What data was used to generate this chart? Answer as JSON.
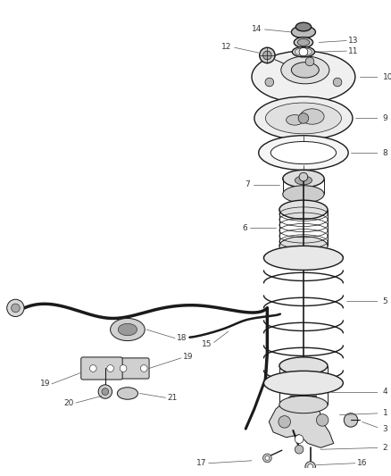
{
  "bg_color": "#ffffff",
  "line_color": "#1a1a1a",
  "label_color": "#333333",
  "fig_width": 4.38,
  "fig_height": 5.33,
  "dpi": 100,
  "xlim": [
    0,
    438
  ],
  "ylim": [
    0,
    533
  ]
}
